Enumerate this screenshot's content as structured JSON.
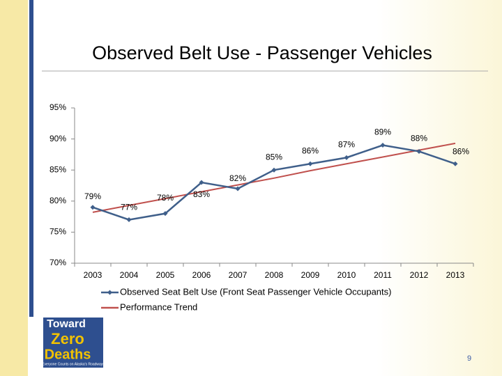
{
  "chart_data": {
    "type": "line",
    "title": "Observed Belt Use - Passenger Vehicles",
    "categories": [
      "2003",
      "2004",
      "2005",
      "2006",
      "2007",
      "2008",
      "2009",
      "2010",
      "2011",
      "2012",
      "2013"
    ],
    "series": [
      {
        "name": "Observed Seat Belt Use (Front Seat Passenger Vehicle Occupants)",
        "color": "#3f5f8a",
        "values": [
          79,
          77,
          78,
          83,
          82,
          85,
          86,
          87,
          89,
          88,
          86
        ],
        "value_labels": [
          "79%",
          "77%",
          "78%",
          "83%",
          "82%",
          "85%",
          "86%",
          "87%",
          "89%",
          "88%",
          "86%"
        ]
      },
      {
        "name": "Performance Trend",
        "color": "#c0504d",
        "values": [
          78.2,
          79.3,
          80.4,
          81.5,
          82.6,
          83.7,
          84.9,
          86.0,
          87.1,
          88.2,
          89.3
        ]
      }
    ],
    "ylim": [
      70,
      95
    ],
    "yticks": [
      {
        "value": 70,
        "label": "70%"
      },
      {
        "value": 75,
        "label": "75%"
      },
      {
        "value": 80,
        "label": "80%"
      },
      {
        "value": 85,
        "label": "85%"
      },
      {
        "value": 90,
        "label": "90%"
      },
      {
        "value": 95,
        "label": "95%"
      }
    ],
    "legend": "bottom"
  },
  "logo": {
    "lines": [
      "Toward",
      "Zero",
      "Deaths"
    ],
    "tagline": "Everyone Counts on Alaska's Roadways"
  },
  "page_number": "9"
}
